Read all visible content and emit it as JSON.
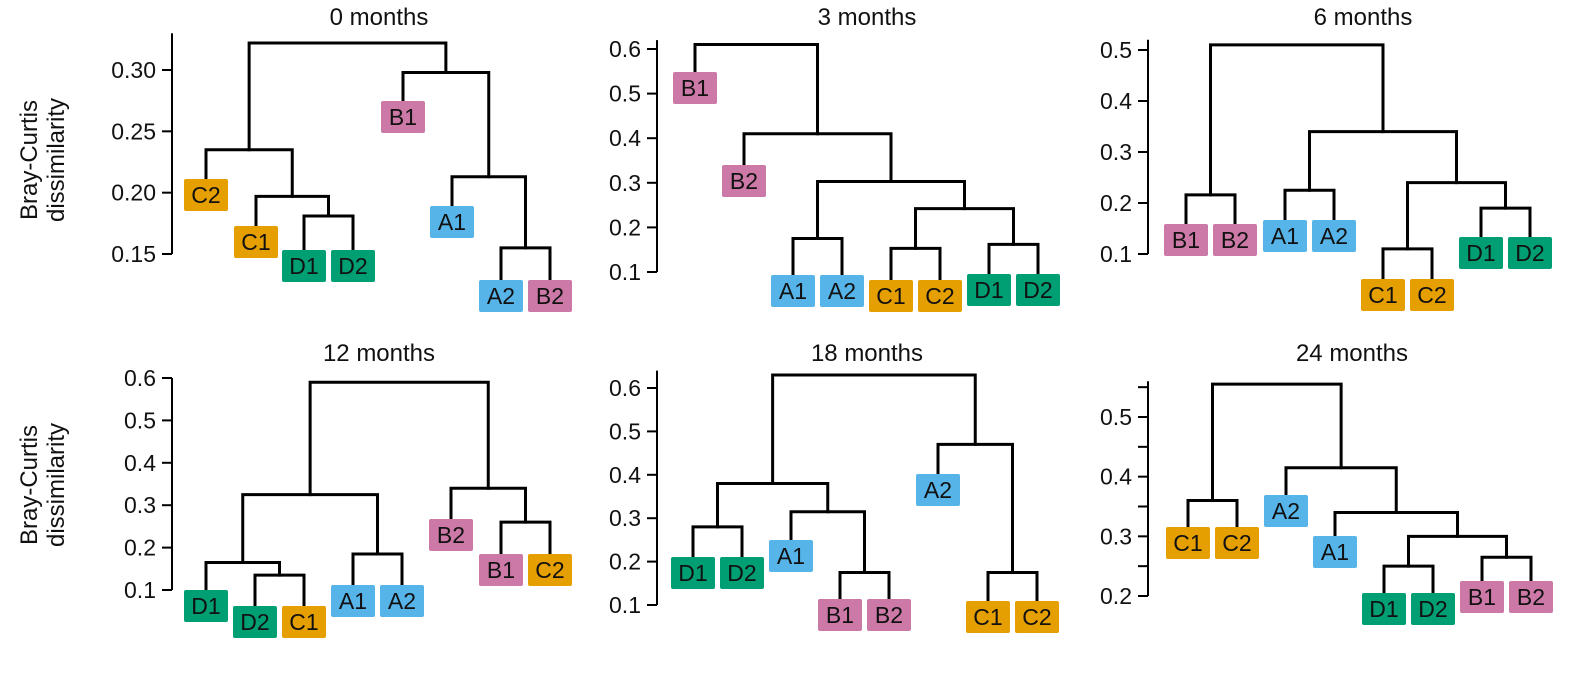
{
  "ylabel": {
    "line1": "Bray-Curtis",
    "line2": "dissimilarity"
  },
  "colors": {
    "A": "#56b4e9",
    "B": "#cc79a7",
    "C": "#e69f00",
    "D": "#009e73",
    "line": "#000000"
  },
  "chart_data": [
    {
      "type": "dendrogram",
      "title": "0 months",
      "ylabel": "Bray-Curtis dissimilarity",
      "yticks": [
        0.15,
        0.2,
        0.25,
        0.3
      ],
      "ylim": [
        0.15,
        0.33
      ],
      "leaves": [
        "C2",
        "C1",
        "D1",
        "D2",
        "B1",
        "A1",
        "A2",
        "B2"
      ],
      "leaf_colors": [
        "C",
        "C",
        "D",
        "D",
        "B",
        "A",
        "A",
        "B"
      ],
      "merges": [
        {
          "a": "D1",
          "b": "D2",
          "height": 0.181
        },
        {
          "a": "C1",
          "b": "D1+D2",
          "height": 0.197
        },
        {
          "a": "C2",
          "b": "C1+D1+D2",
          "height": 0.235
        },
        {
          "a": "A2",
          "b": "B2",
          "height": 0.155
        },
        {
          "a": "A1",
          "b": "A2+B2",
          "height": 0.213
        },
        {
          "a": "B1",
          "b": "A1+A2+B2",
          "height": 0.298
        },
        {
          "a": "C2+C1+D1+D2",
          "b": "B1+A1+A2+B2",
          "height": 0.322
        }
      ]
    },
    {
      "type": "dendrogram",
      "title": "3 months",
      "yticks": [
        0.1,
        0.2,
        0.3,
        0.4,
        0.5,
        0.6
      ],
      "ylim": [
        0.1,
        0.62
      ],
      "leaves": [
        "B1",
        "B2",
        "A1",
        "A2",
        "C1",
        "C2",
        "D1",
        "D2"
      ],
      "leaf_colors": [
        "B",
        "B",
        "A",
        "A",
        "C",
        "C",
        "D",
        "D"
      ],
      "merges": [
        {
          "a": "A1",
          "b": "A2",
          "height": 0.175
        },
        {
          "a": "C1",
          "b": "C2",
          "height": 0.153
        },
        {
          "a": "D1",
          "b": "D2",
          "height": 0.162
        },
        {
          "a": "C1+C2",
          "b": "D1+D2",
          "height": 0.242
        },
        {
          "a": "A1+A2",
          "b": "C1+C2+D1+D2",
          "height": 0.303
        },
        {
          "a": "B2",
          "b": "A1+A2+C1+C2+D1+D2",
          "height": 0.41
        },
        {
          "a": "B1",
          "b": "B2+A1+A2+C1+C2+D1+D2",
          "height": 0.61
        }
      ]
    },
    {
      "type": "dendrogram",
      "title": "6 months",
      "yticks": [
        0.1,
        0.2,
        0.3,
        0.4,
        0.5
      ],
      "ylim": [
        0.1,
        0.52
      ],
      "leaves": [
        "B1",
        "B2",
        "A1",
        "A2",
        "C1",
        "C2",
        "D1",
        "D2"
      ],
      "leaf_colors": [
        "B",
        "B",
        "A",
        "A",
        "C",
        "C",
        "D",
        "D"
      ],
      "merges": [
        {
          "a": "B1",
          "b": "B2",
          "height": 0.216
        },
        {
          "a": "A1",
          "b": "A2",
          "height": 0.225
        },
        {
          "a": "C1",
          "b": "C2",
          "height": 0.11
        },
        {
          "a": "D1",
          "b": "D2",
          "height": 0.19
        },
        {
          "a": "C1+C2",
          "b": "D1+D2",
          "height": 0.24
        },
        {
          "a": "A1+A2",
          "b": "C1+C2+D1+D2",
          "height": 0.34
        },
        {
          "a": "B1+B2",
          "b": "A1+A2+C1+C2+D1+D2",
          "height": 0.51
        }
      ]
    },
    {
      "type": "dendrogram",
      "title": "12 months",
      "ylabel": "Bray-Curtis dissimilarity",
      "yticks": [
        0.1,
        0.2,
        0.3,
        0.4,
        0.5,
        0.6
      ],
      "ylim": [
        0.1,
        0.6
      ],
      "leaves": [
        "D1",
        "D2",
        "C1",
        "A1",
        "A2",
        "B2",
        "B1",
        "C2"
      ],
      "leaf_colors": [
        "D",
        "D",
        "C",
        "A",
        "A",
        "B",
        "B",
        "C"
      ],
      "merges": [
        {
          "a": "D2",
          "b": "C1",
          "height": 0.135
        },
        {
          "a": "D1",
          "b": "D2+C1",
          "height": 0.165
        },
        {
          "a": "A1",
          "b": "A2",
          "height": 0.185
        },
        {
          "a": "D1+D2+C1",
          "b": "A1+A2",
          "height": 0.325
        },
        {
          "a": "B1",
          "b": "C2",
          "height": 0.26
        },
        {
          "a": "B2",
          "b": "B1+C2",
          "height": 0.34
        },
        {
          "a": "D1+D2+C1+A1+A2",
          "b": "B2+B1+C2",
          "height": 0.59
        }
      ]
    },
    {
      "type": "dendrogram",
      "title": "18 months",
      "yticks": [
        0.1,
        0.2,
        0.3,
        0.4,
        0.5,
        0.6
      ],
      "ylim": [
        0.1,
        0.64
      ],
      "leaves": [
        "D1",
        "D2",
        "A1",
        "B1",
        "B2",
        "A2",
        "C1",
        "C2"
      ],
      "leaf_colors": [
        "D",
        "D",
        "A",
        "B",
        "B",
        "A",
        "C",
        "C"
      ],
      "merges": [
        {
          "a": "D1",
          "b": "D2",
          "height": 0.28
        },
        {
          "a": "B1",
          "b": "B2",
          "height": 0.175
        },
        {
          "a": "A1",
          "b": "B1+B2",
          "height": 0.315
        },
        {
          "a": "D1+D2",
          "b": "A1+B1+B2",
          "height": 0.38
        },
        {
          "a": "C1",
          "b": "C2",
          "height": 0.175
        },
        {
          "a": "A2",
          "b": "C1+C2",
          "height": 0.47
        },
        {
          "a": "D1+D2+A1+B1+B2",
          "b": "A2+C1+C2",
          "height": 0.63
        }
      ]
    },
    {
      "type": "dendrogram",
      "title": "24 months",
      "yticks": [
        0.2,
        0.3,
        0.4,
        0.5
      ],
      "minor_yticks": [
        0.25,
        0.35,
        0.45,
        0.55
      ],
      "ylim": [
        0.2,
        0.56
      ],
      "leaves": [
        "C1",
        "C2",
        "A2",
        "A1",
        "D1",
        "D2",
        "B1",
        "B2"
      ],
      "leaf_colors": [
        "C",
        "C",
        "A",
        "A",
        "D",
        "D",
        "B",
        "B"
      ],
      "merges": [
        {
          "a": "C1",
          "b": "C2",
          "height": 0.36
        },
        {
          "a": "D1",
          "b": "D2",
          "height": 0.25
        },
        {
          "a": "B1",
          "b": "B2",
          "height": 0.265
        },
        {
          "a": "D1+D2",
          "b": "B1+B2",
          "height": 0.3
        },
        {
          "a": "A1",
          "b": "D1+D2+B1+B2",
          "height": 0.34
        },
        {
          "a": "A2",
          "b": "A1+D1+D2+B1+B2",
          "height": 0.415
        },
        {
          "a": "C1+C2",
          "b": "A2+A1+D1+D2+B1+B2",
          "height": 0.555
        }
      ]
    }
  ]
}
